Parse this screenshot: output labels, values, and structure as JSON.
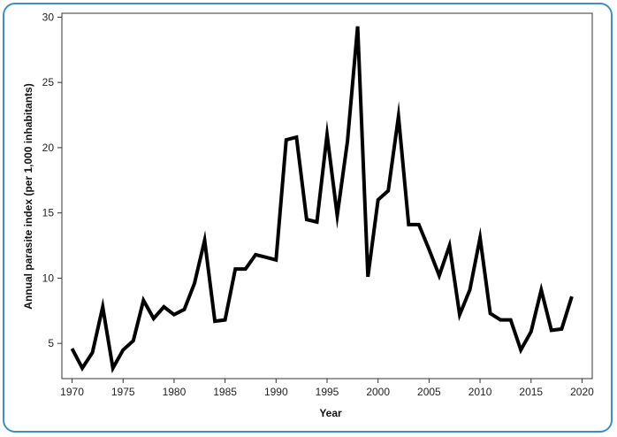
{
  "colors": {
    "frame_border": "#3a8fc9",
    "line": "#000000",
    "axes": "#333333"
  },
  "chart_data": {
    "type": "line",
    "title": "",
    "xlabel": "Year",
    "ylabel": "Annual parasite index (per 1,000 inhabitants)",
    "xlim": [
      1969,
      2021
    ],
    "ylim": [
      2.3,
      30.3
    ],
    "x_ticks": [
      1970,
      1975,
      1980,
      1985,
      1990,
      1995,
      2000,
      2005,
      2010,
      2015,
      2020
    ],
    "y_ticks": [
      5,
      10,
      15,
      20,
      25,
      30
    ],
    "grid": false,
    "legend": false,
    "x": [
      1970,
      1971,
      1972,
      1973,
      1974,
      1975,
      1976,
      1977,
      1978,
      1979,
      1980,
      1981,
      1982,
      1983,
      1984,
      1985,
      1986,
      1987,
      1988,
      1989,
      1990,
      1991,
      1992,
      1993,
      1994,
      1995,
      1996,
      1997,
      1998,
      1999,
      2000,
      2001,
      2002,
      2003,
      2004,
      2005,
      2006,
      2007,
      2008,
      2009,
      2010,
      2011,
      2012,
      2013,
      2014,
      2015,
      2016,
      2017,
      2018,
      2019
    ],
    "series": [
      {
        "values": [
          4.6,
          3.1,
          4.3,
          7.8,
          3.1,
          4.5,
          5.2,
          8.3,
          6.9,
          7.8,
          7.2,
          7.6,
          9.6,
          12.9,
          6.7,
          6.8,
          10.7,
          10.7,
          11.8,
          11.6,
          11.4,
          20.6,
          20.8,
          14.5,
          14.3,
          21.0,
          14.8,
          20.5,
          29.3,
          10.1,
          16.0,
          16.7,
          22.4,
          14.1,
          14.1,
          12.2,
          10.2,
          12.5,
          7.2,
          9.1,
          13.1,
          7.3,
          6.8,
          6.8,
          4.5,
          5.9,
          9.1,
          6.0,
          6.1,
          8.6
        ]
      }
    ]
  }
}
